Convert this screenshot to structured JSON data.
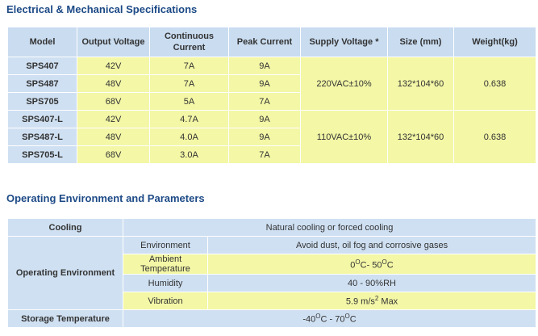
{
  "section1": {
    "title": "Electrical & Mechanical Specifications",
    "headers": [
      "Model",
      "Output Voltage",
      "Continuous Current",
      "Peak Current",
      "Supply Voltage *",
      "Size (mm)",
      "Weight(kg)"
    ],
    "groups": [
      {
        "supply": "220VAC±10%",
        "size": "132*104*60",
        "weight": "0.638",
        "rows": [
          [
            "SPS407",
            "42V",
            "7A",
            "9A"
          ],
          [
            "SPS487",
            "48V",
            "7A",
            "9A"
          ],
          [
            "SPS705",
            "68V",
            "5A",
            "7A"
          ]
        ]
      },
      {
        "supply": "110VAC±10%",
        "size": "132*104*60",
        "weight": "0.638",
        "rows": [
          [
            "SPS407-L",
            "42V",
            "4.7A",
            "9A"
          ],
          [
            "SPS487-L",
            "48V",
            "4.0A",
            "9A"
          ],
          [
            "SPS705-L",
            "68V",
            "3.0A",
            "7A"
          ]
        ]
      }
    ]
  },
  "section2": {
    "title": "Operating Environment and Parameters",
    "cooling": {
      "label": "Cooling",
      "value": [
        "Natural cooling or forced cooling"
      ]
    },
    "operating": {
      "label": "Operating Environment",
      "rows": [
        {
          "name": "Environment",
          "value": [
            "Avoid dust, oil fog and corrosive gases"
          ]
        },
        {
          "name": "Ambient Temperature",
          "value": [
            "0",
            "O",
            "C- 50",
            "O",
            "C"
          ]
        },
        {
          "name": "Humidity",
          "value": [
            "40 - 90%RH"
          ]
        },
        {
          "name": "Vibration",
          "value": [
            "5.9 m/s",
            "2",
            " Max"
          ]
        }
      ]
    },
    "storage": {
      "label": "Storage Temperature",
      "value": [
        "-40",
        "O",
        "C - 70",
        "O",
        "C"
      ]
    }
  }
}
